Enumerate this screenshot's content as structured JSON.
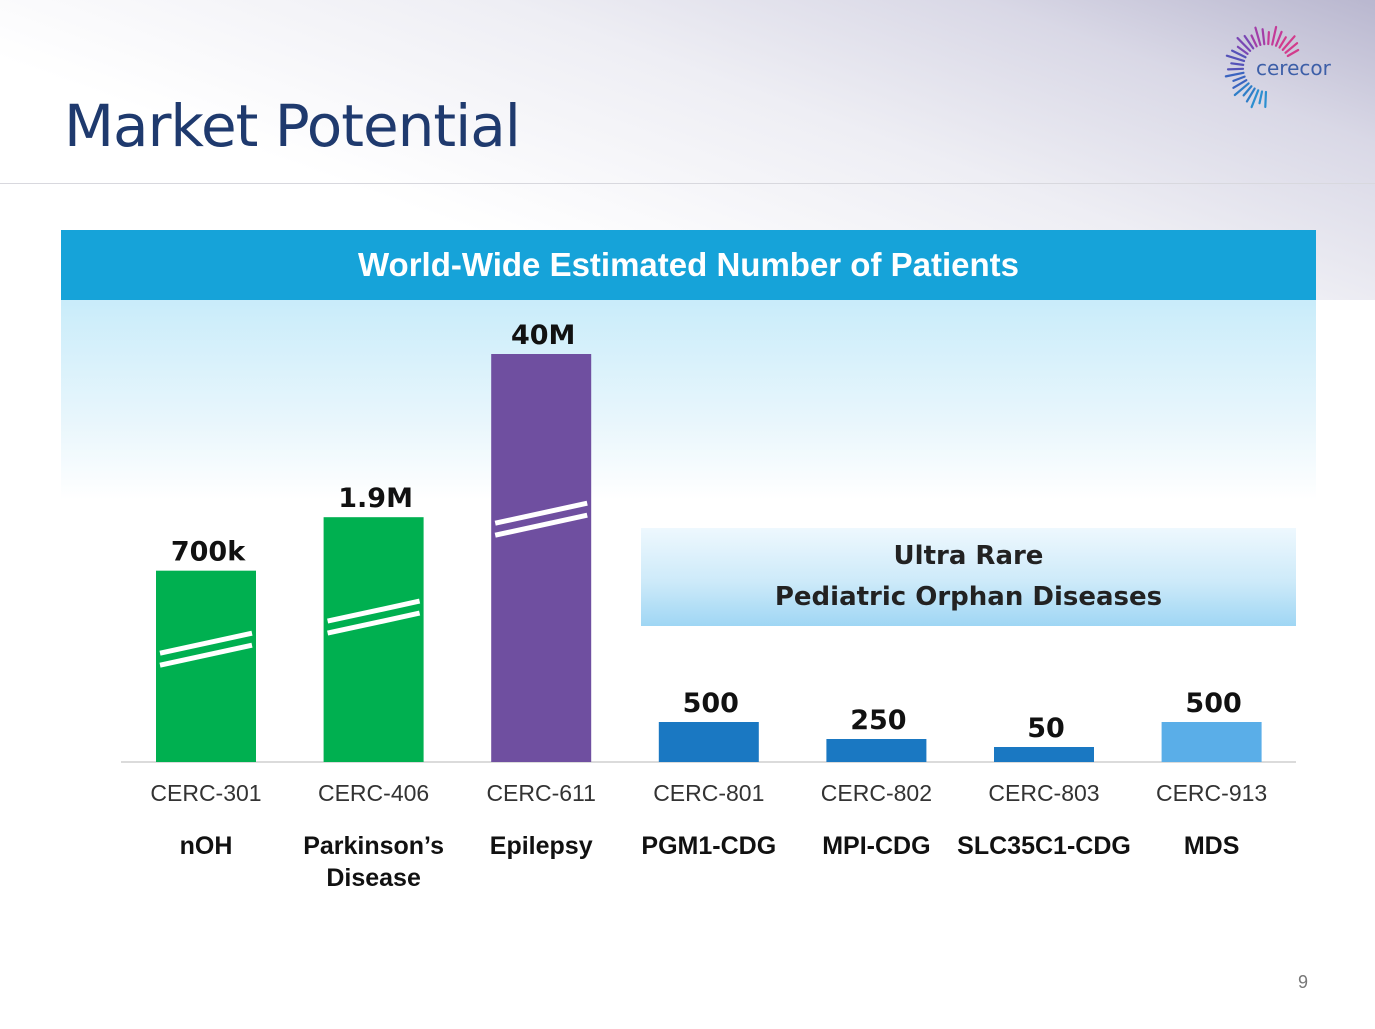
{
  "title": "Market Potential",
  "logo_text": "cerecor",
  "page_number": "9",
  "rare_box": {
    "line1": "Ultra Rare",
    "line2": "Pediatric Orphan Diseases"
  },
  "chart_data": {
    "type": "bar",
    "title": "World-Wide Estimated Number of Patients",
    "axis_break": true,
    "categories": [
      "CERC-301",
      "CERC-406",
      "CERC-611",
      "CERC-801",
      "CERC-802",
      "CERC-803",
      "CERC-913"
    ],
    "indications": [
      [
        "nOH"
      ],
      [
        "Parkinson’s",
        "Disease"
      ],
      [
        "Epilepsy"
      ],
      [
        "PGM1-CDG"
      ],
      [
        "MPI-CDG"
      ],
      [
        "SLC35C1-CDG"
      ],
      [
        "MDS"
      ]
    ],
    "values": [
      700000,
      1900000,
      40000000,
      500,
      250,
      50,
      500
    ],
    "value_labels": [
      "700k",
      "1.9M",
      "40M",
      "500",
      "250",
      "50",
      "500"
    ],
    "broken": [
      true,
      true,
      true,
      false,
      false,
      false,
      false
    ],
    "colors": [
      "#00b050",
      "#00b050",
      "#6f4fa0",
      "#1a78c2",
      "#1a78c2",
      "#1a78c2",
      "#5aaee8"
    ]
  }
}
